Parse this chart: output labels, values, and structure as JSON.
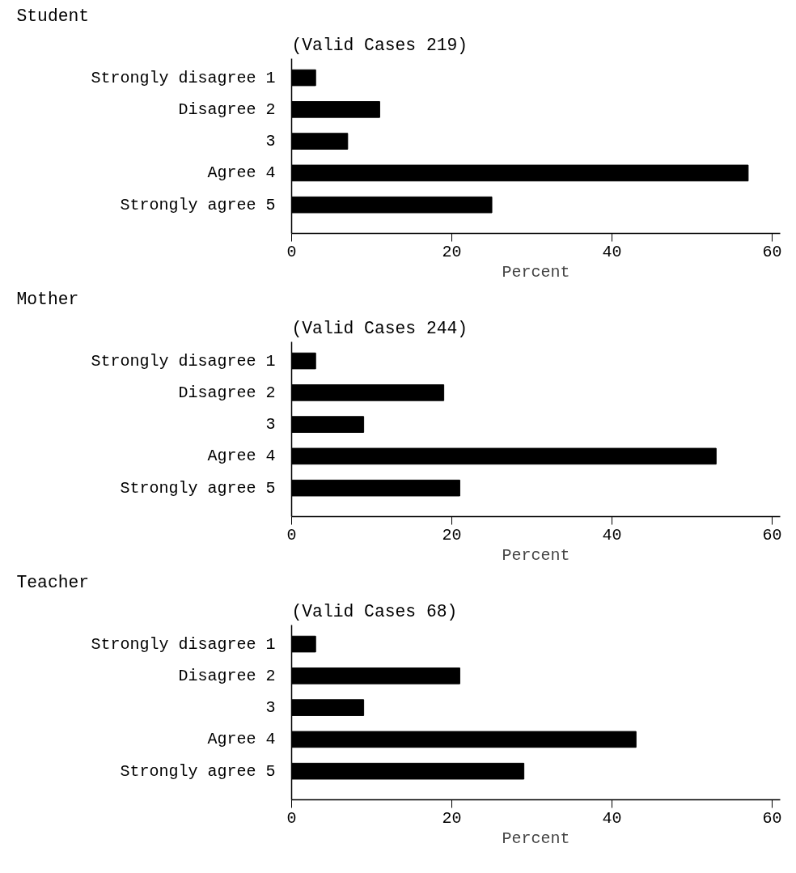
{
  "chart_data": [
    {
      "type": "bar",
      "orientation": "horizontal",
      "title": "Student",
      "subtitle": "(Valid Cases 219)",
      "xlabel": "Percent",
      "categories": [
        "Strongly disagree 1",
        "Disagree 2",
        "3",
        "Agree 4",
        "Strongly agree 5"
      ],
      "values": [
        3,
        11,
        7,
        57,
        25
      ],
      "color": "#000000",
      "xlim": [
        0,
        61
      ],
      "xticks": [
        0,
        20,
        40,
        60
      ]
    },
    {
      "type": "bar",
      "orientation": "horizontal",
      "title": "Mother",
      "subtitle": "(Valid Cases 244)",
      "xlabel": "Percent",
      "categories": [
        "Strongly disagree 1",
        "Disagree 2",
        "3",
        "Agree 4",
        "Strongly agree 5"
      ],
      "values": [
        3,
        19,
        9,
        53,
        21
      ],
      "color": "#000000",
      "xlim": [
        0,
        61
      ],
      "xticks": [
        0,
        20,
        40,
        60
      ]
    },
    {
      "type": "bar",
      "orientation": "horizontal",
      "title": "Teacher",
      "subtitle": "(Valid Cases 68)",
      "xlabel": "Percent",
      "categories": [
        "Strongly disagree 1",
        "Disagree 2",
        "3",
        "Agree 4",
        "Strongly agree 5"
      ],
      "values": [
        3,
        21,
        9,
        43,
        29
      ],
      "color": "#000000",
      "xlim": [
        0,
        61
      ],
      "xticks": [
        0,
        20,
        40,
        60
      ]
    }
  ]
}
